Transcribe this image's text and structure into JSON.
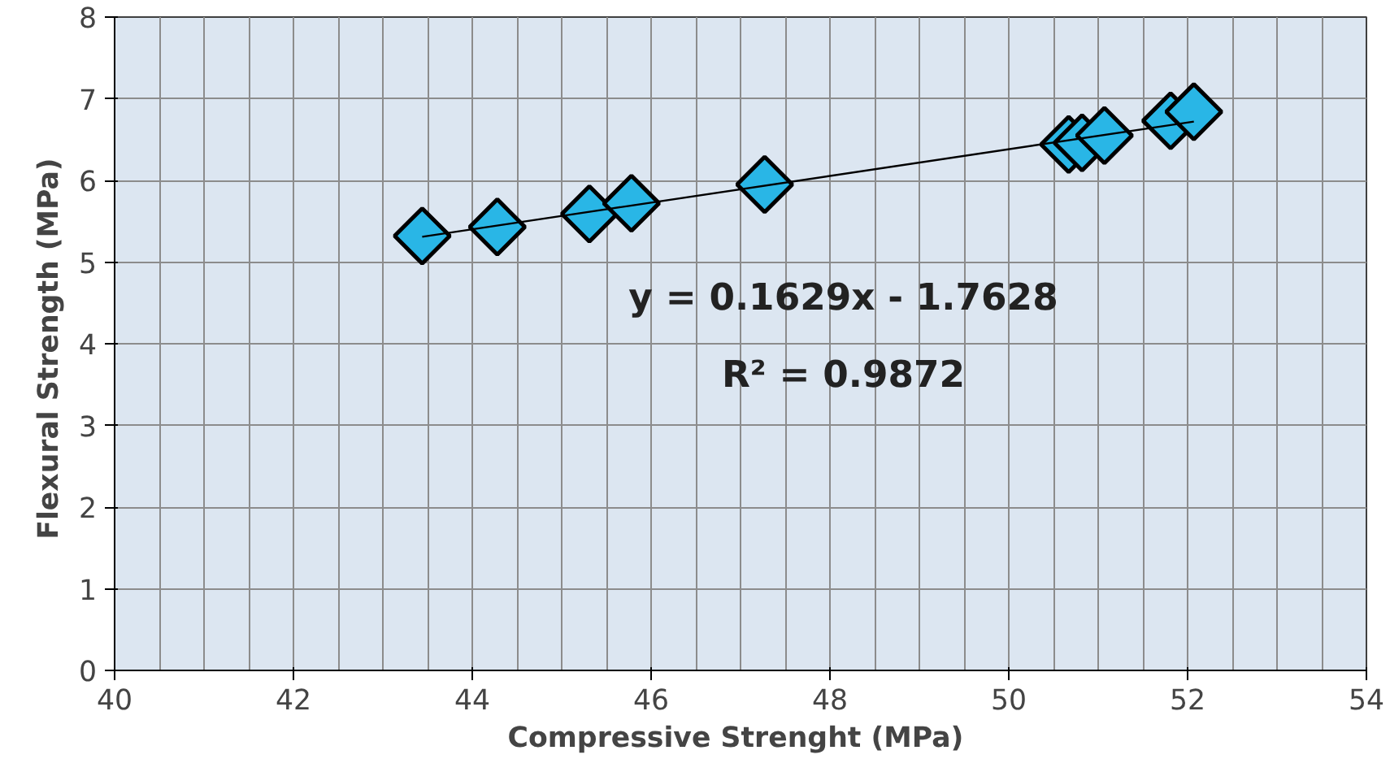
{
  "chart_data": {
    "type": "scatter",
    "xlabel": "Compressive  Strenght (MPa)",
    "ylabel": "Flexural  Strength (MPa)",
    "x": [
      43.44,
      44.28,
      45.31,
      45.78,
      47.27,
      50.67,
      50.82,
      51.07,
      51.81,
      52.07
    ],
    "series": [
      {
        "color": "#29b6e6",
        "values": [
          5.32,
          5.43,
          5.59,
          5.72,
          5.95,
          6.44,
          6.46,
          6.55,
          6.73,
          6.84
        ]
      },
      {
        "type": "line",
        "color": "#000000",
        "x": [
          43.44,
          52.07
        ],
        "values": [
          5.31,
          6.72
        ],
        "marker": "none"
      }
    ],
    "annotations": [
      "y = 0.1629x - 1.7628",
      "R² = 0.9872"
    ],
    "xlim": [
      40,
      54
    ],
    "ylim": [
      0,
      8
    ],
    "xticks": [
      40,
      42,
      44,
      46,
      48,
      50,
      52,
      54
    ],
    "yticks": [
      0,
      1,
      2,
      3,
      4,
      5,
      6,
      7,
      8
    ],
    "grid": true,
    "marker": "diamond"
  }
}
